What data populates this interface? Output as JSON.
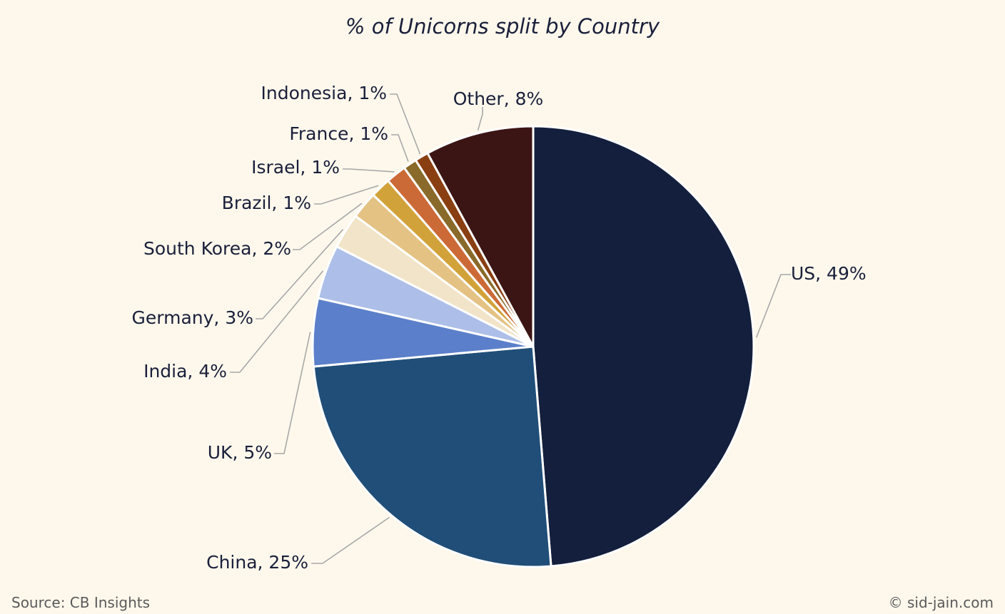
{
  "chart_data": {
    "type": "pie",
    "title": "% of Unicorns split by Country",
    "start_angle_deg": 0,
    "direction": "clockwise",
    "slices": [
      {
        "label": "US, 49%",
        "value": 49,
        "color": "#131f3c"
      },
      {
        "label": "China, 25%",
        "value": 25,
        "color": "#204e78"
      },
      {
        "label": "UK, 5%",
        "value": 5,
        "color": "#5b7fca"
      },
      {
        "label": "India, 4%",
        "value": 4,
        "color": "#adbfe8"
      },
      {
        "label": "Germany, 3%",
        "value": 2.6,
        "color": "#f2e4c8"
      },
      {
        "label": "South Korea, 2%",
        "value": 2,
        "color": "#e4c283"
      },
      {
        "label": "Brazil, 1%",
        "value": 1.5,
        "color": "#d2a23a"
      },
      {
        "label": "Israel, 1%",
        "value": 1.5,
        "color": "#cc6a37"
      },
      {
        "label": "France, 1%",
        "value": 1,
        "color": "#8a6a2a"
      },
      {
        "label": "Indonesia, 1%",
        "value": 1,
        "color": "#8a3f12"
      },
      {
        "label": "Other, 8%",
        "value": 8,
        "color": "#3b1514"
      }
    ]
  },
  "footer": {
    "source": "Source: CB Insights",
    "credit": "© sid-jain.com"
  }
}
